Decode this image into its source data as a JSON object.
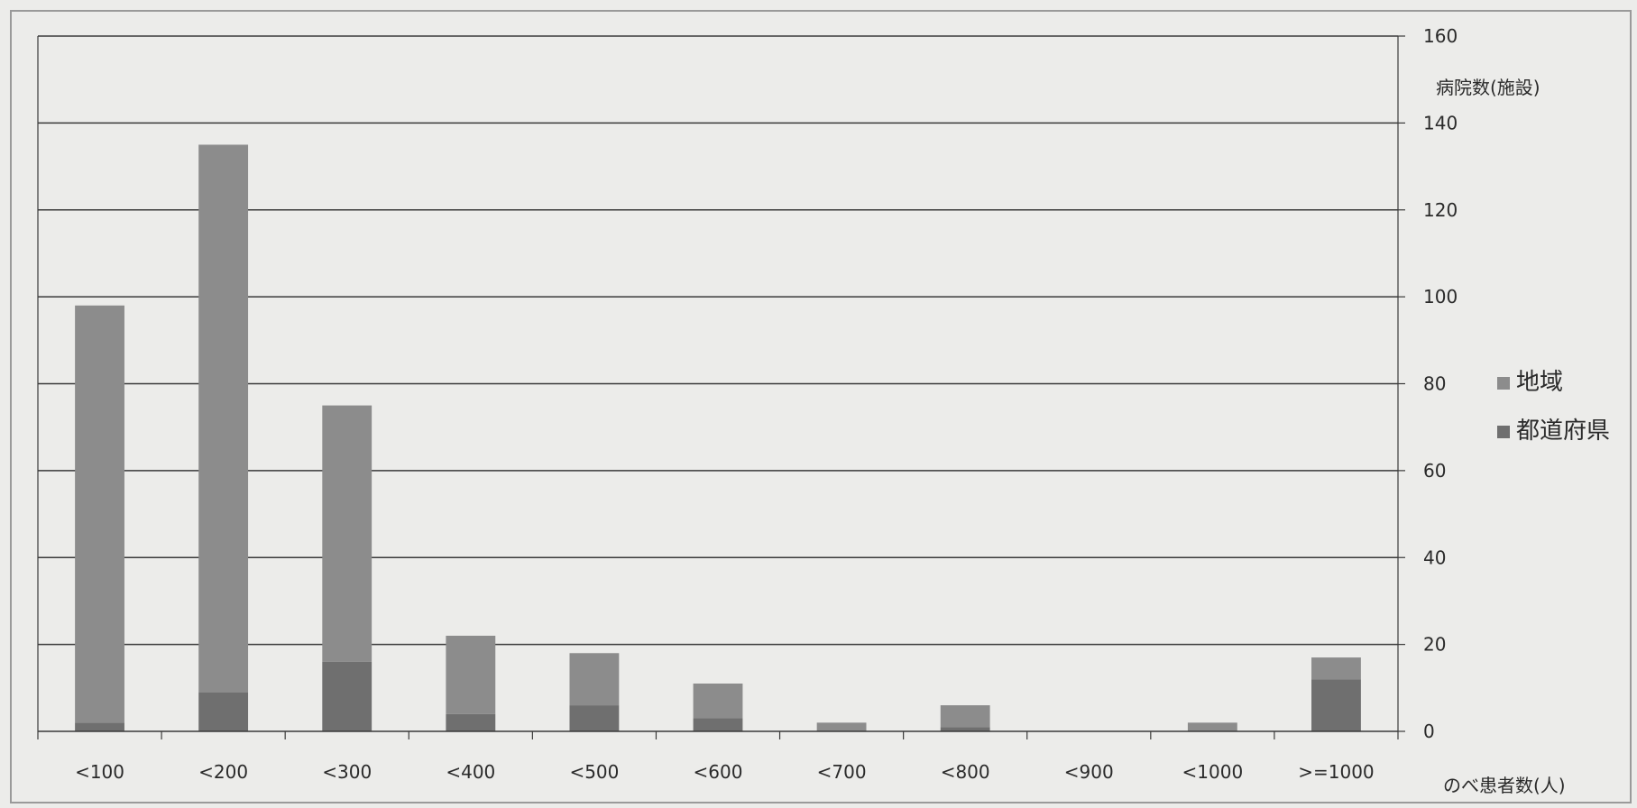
{
  "chart_data": {
    "type": "bar",
    "stacked": true,
    "categories": [
      "<100",
      "<200",
      "<300",
      "<400",
      "<500",
      "<600",
      "<700",
      "<800",
      "<900",
      "<1000",
      ">=1000"
    ],
    "series": [
      {
        "name": "都道府県",
        "values": [
          2,
          9,
          16,
          4,
          6,
          3,
          0,
          1,
          0,
          0,
          12
        ]
      },
      {
        "name": "地域",
        "values": [
          96,
          126,
          59,
          18,
          12,
          8,
          2,
          5,
          0,
          2,
          5
        ]
      }
    ],
    "xlabel": "のべ患者数(人)",
    "ylabel": "病院数(施設)",
    "ylim": [
      0,
      160
    ],
    "yticks": [
      0,
      20,
      40,
      60,
      80,
      100,
      120,
      140,
      160
    ],
    "y_axis_side": "right",
    "grid": true,
    "legend": "right",
    "colors": {
      "background": "#ececea",
      "地域": "#8c8c8c",
      "都道府県": "#6f6f6f",
      "grid": "#3a3a3a",
      "axis": "#3a3a3a"
    }
  }
}
